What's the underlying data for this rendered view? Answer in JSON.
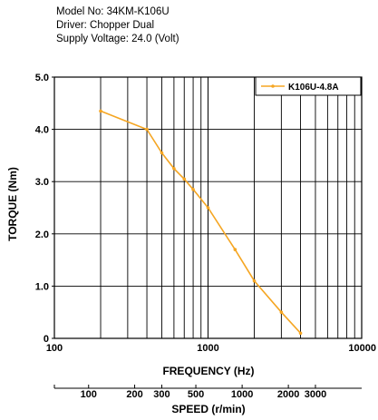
{
  "header": {
    "model": "Model No: 34KM-K106U",
    "driver": "Driver: Chopper Dual",
    "supply": "Supply Voltage: 24.0 (Volt)"
  },
  "chart_data": {
    "type": "line",
    "title": "",
    "xlabel": "FREQUENCY (Hz)",
    "ylabel": "TORQUE (Nm)",
    "x_scale": "log",
    "xlim": [
      100,
      10000
    ],
    "ylim": [
      0,
      5
    ],
    "x_ticks": [
      "100",
      "1000",
      "10000"
    ],
    "y_ticks": [
      "0",
      "1.0",
      "2.0",
      "3.0",
      "4.0",
      "5.0"
    ],
    "grid": true,
    "legend_position": "top-right",
    "colors": {
      "series": "#f5a623",
      "grid": "#000000"
    },
    "series": [
      {
        "name": "K106U-4.8A",
        "x": [
          200,
          400,
          500,
          600,
          700,
          800,
          1000,
          1500,
          2000,
          3000,
          4000
        ],
        "y": [
          4.35,
          4.0,
          3.55,
          3.25,
          3.05,
          2.85,
          2.5,
          1.7,
          1.1,
          0.5,
          0.1
        ]
      }
    ],
    "secondary_axis": {
      "label": "SPEED (r/min)",
      "ticks": [
        {
          "label": "100",
          "freq": 167
        },
        {
          "label": "200",
          "freq": 333
        },
        {
          "label": "300",
          "freq": 500
        },
        {
          "label": "500",
          "freq": 833
        },
        {
          "label": "1000",
          "freq": 1667
        },
        {
          "label": "2000",
          "freq": 3333
        },
        {
          "label": "3000",
          "freq": 5000
        }
      ]
    }
  }
}
